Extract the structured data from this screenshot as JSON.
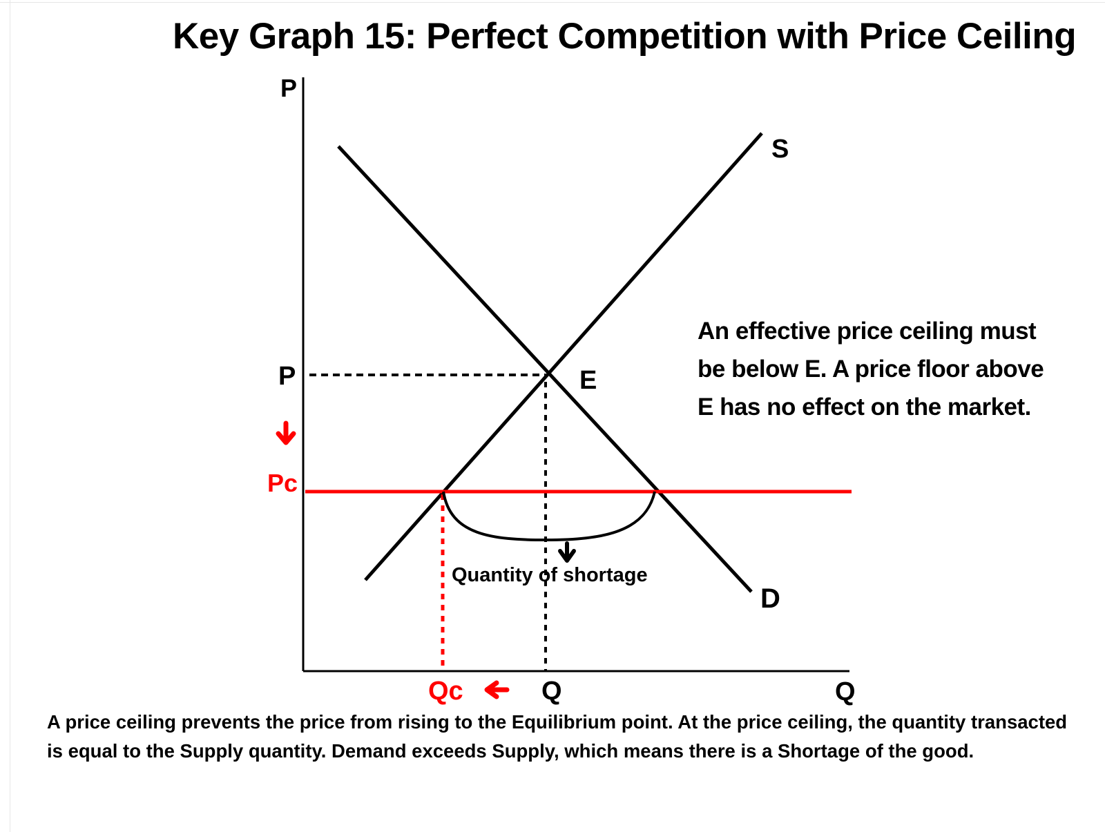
{
  "title": "Key Graph 15: Perfect Competition with Price Ceiling",
  "axes": {
    "y_label": "P",
    "x_label": "Q"
  },
  "curves": {
    "supply_label": "S",
    "demand_label": "D"
  },
  "equilibrium": {
    "point_label": "E",
    "price_label": "P",
    "quantity_label": "Q"
  },
  "ceiling": {
    "price_label": "Pc",
    "quantity_label": "Qc"
  },
  "shortage_label": "Quantity of shortage",
  "note": "An effective price ceiling must be below E.  A price floor above E has no effect on the market.",
  "caption": "A price ceiling prevents the price from rising to the Equilibrium point.  At the price ceiling, the quantity transacted is equal to the Supply quantity.  Demand exceeds Supply, which means there is a Shortage of the good.",
  "colors": {
    "ink": "#000000",
    "ceiling": "#ff0000"
  }
}
